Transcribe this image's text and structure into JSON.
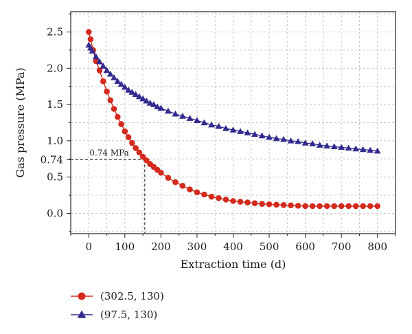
{
  "chart_data": {
    "type": "line",
    "xlabel": "Extraction time (d)",
    "ylabel": "Gas pressure (MPa)",
    "xlim": [
      -50,
      850
    ],
    "ylim": [
      -0.28,
      2.78
    ],
    "x_ticks": [
      0,
      100,
      200,
      300,
      400,
      500,
      600,
      700,
      800
    ],
    "y_ticks": [
      0.0,
      0.5,
      0.74,
      1.0,
      1.5,
      2.0,
      2.5
    ],
    "y_tick_labels": [
      "0.0",
      "0.5",
      "0.74",
      "1.0",
      "1.5",
      "2.0",
      "2.5"
    ],
    "grid": true,
    "legend_position": "below",
    "annotation": {
      "text": "0.74 MPa",
      "x": 155,
      "y": 0.74
    },
    "series": [
      {
        "name": "(302.5, 130)",
        "marker": "circle",
        "color": "#d42a1e",
        "x": [
          0,
          5,
          12,
          20,
          30,
          40,
          50,
          60,
          70,
          80,
          90,
          100,
          110,
          120,
          130,
          140,
          150,
          160,
          170,
          180,
          190,
          200,
          220,
          240,
          260,
          280,
          300,
          320,
          340,
          360,
          380,
          400,
          420,
          440,
          460,
          480,
          500,
          520,
          540,
          560,
          580,
          600,
          620,
          640,
          660,
          680,
          700,
          720,
          740,
          760,
          780,
          800
        ],
        "y": [
          2.5,
          2.4,
          2.25,
          2.1,
          1.97,
          1.82,
          1.68,
          1.56,
          1.44,
          1.33,
          1.23,
          1.13,
          1.05,
          0.97,
          0.9,
          0.84,
          0.78,
          0.73,
          0.68,
          0.64,
          0.6,
          0.56,
          0.49,
          0.43,
          0.38,
          0.33,
          0.29,
          0.26,
          0.23,
          0.21,
          0.19,
          0.17,
          0.16,
          0.15,
          0.14,
          0.13,
          0.125,
          0.12,
          0.115,
          0.11,
          0.105,
          0.1,
          0.1,
          0.1,
          0.1,
          0.1,
          0.1,
          0.1,
          0.1,
          0.1,
          0.1,
          0.1
        ]
      },
      {
        "name": "(97.5, 130)",
        "marker": "triangle",
        "color": "#332b8f",
        "x": [
          0,
          5,
          10,
          20,
          30,
          40,
          50,
          60,
          70,
          80,
          90,
          100,
          110,
          120,
          130,
          140,
          150,
          160,
          170,
          180,
          190,
          200,
          220,
          240,
          260,
          280,
          300,
          320,
          340,
          360,
          380,
          400,
          420,
          440,
          460,
          480,
          500,
          520,
          540,
          560,
          580,
          600,
          620,
          640,
          660,
          680,
          700,
          720,
          740,
          760,
          780,
          800
        ],
        "y": [
          2.32,
          2.28,
          2.24,
          2.16,
          2.09,
          2.03,
          1.97,
          1.92,
          1.87,
          1.82,
          1.78,
          1.74,
          1.7,
          1.67,
          1.64,
          1.61,
          1.58,
          1.55,
          1.52,
          1.5,
          1.47,
          1.45,
          1.41,
          1.37,
          1.34,
          1.31,
          1.28,
          1.25,
          1.22,
          1.2,
          1.17,
          1.15,
          1.13,
          1.11,
          1.09,
          1.07,
          1.05,
          1.03,
          1.02,
          1.0,
          0.99,
          0.97,
          0.96,
          0.94,
          0.93,
          0.92,
          0.91,
          0.9,
          0.89,
          0.88,
          0.87,
          0.86
        ]
      }
    ]
  }
}
